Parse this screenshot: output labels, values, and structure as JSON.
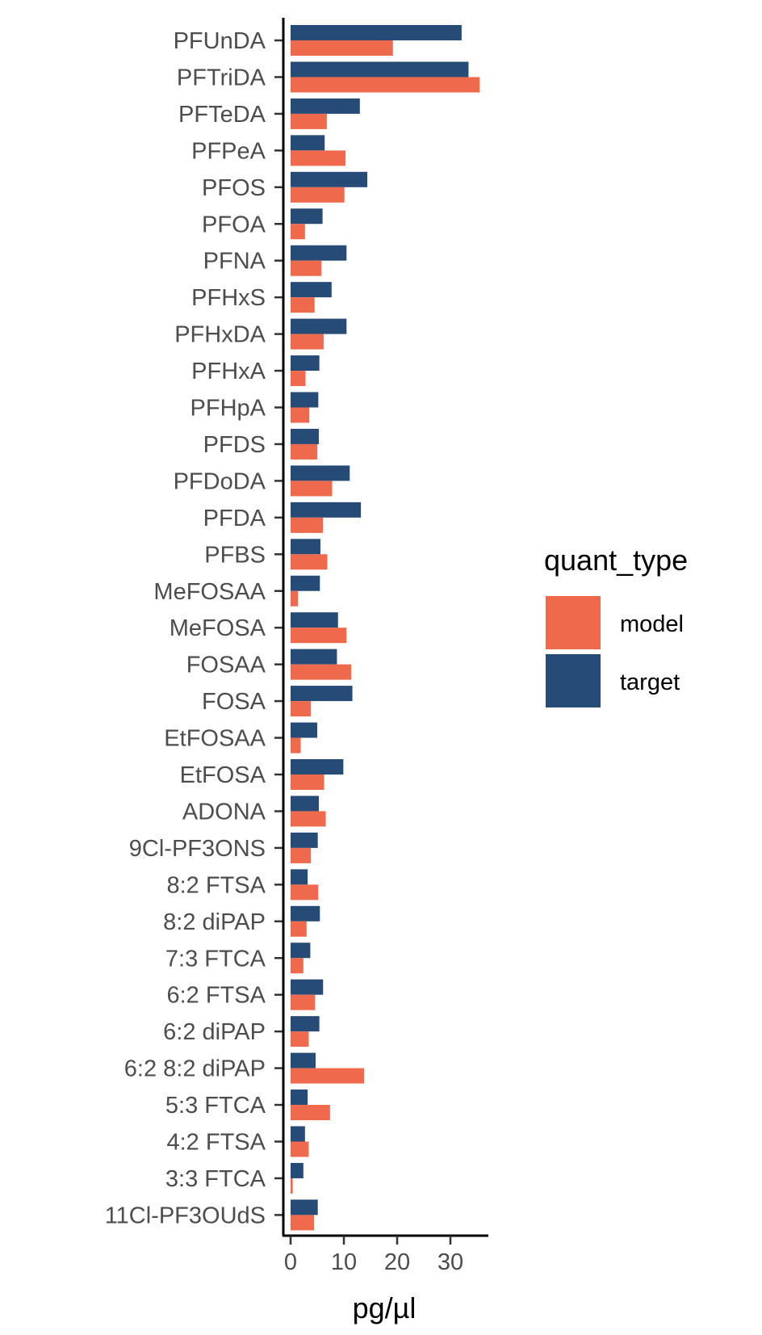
{
  "chart_data": {
    "type": "bar",
    "orientation": "horizontal",
    "xlabel": "pg/µl",
    "ylabel": "",
    "xlim": [
      0,
      37
    ],
    "xticks": [
      "0",
      "10",
      "20",
      "30"
    ],
    "xtick_values": [
      0,
      10,
      20,
      30
    ],
    "grid": false,
    "legend": {
      "title": "quant_type",
      "placement": "right"
    },
    "categories": [
      "PFUnDA",
      "PFTriDA",
      "PFTeDA",
      "PFPeA",
      "PFOS",
      "PFOA",
      "PFNA",
      "PFHxS",
      "PFHxDA",
      "PFHxA",
      "PFHpA",
      "PFDS",
      "PFDoDA",
      "PFDA",
      "PFBS",
      "MeFOSAA",
      "MeFOSA",
      "FOSAA",
      "FOSA",
      "EtFOSAA",
      "EtFOSA",
      "ADONA",
      "9Cl-PF3ONS",
      "8:2 FTSA",
      "8:2 diPAP",
      "7:3 FTCA",
      "6:2 FTSA",
      "6:2 diPAP",
      "6:2 8:2 diPAP",
      "5:3 FTCA",
      "4:2 FTSA",
      "3:3 FTCA",
      "11Cl-PF3OUdS"
    ],
    "series": [
      {
        "name": "model",
        "color": "#EF6A4C",
        "values": [
          19.2,
          35.5,
          6.8,
          10.3,
          10.1,
          2.7,
          5.8,
          4.5,
          6.2,
          2.8,
          3.5,
          5.0,
          7.8,
          6.1,
          6.9,
          1.4,
          10.5,
          11.4,
          3.8,
          1.9,
          6.3,
          6.6,
          3.8,
          5.2,
          3.0,
          2.4,
          4.6,
          3.4,
          13.8,
          7.4,
          3.4,
          0.4,
          4.4
        ]
      },
      {
        "name": "target",
        "color": "#264B77",
        "values": [
          32.1,
          33.4,
          13.0,
          6.4,
          14.4,
          6.0,
          10.5,
          7.7,
          10.5,
          5.4,
          5.2,
          5.3,
          11.1,
          13.2,
          5.6,
          5.5,
          8.9,
          8.7,
          11.6,
          5.0,
          9.9,
          5.3,
          5.1,
          3.2,
          5.5,
          3.7,
          6.1,
          5.4,
          4.7,
          3.2,
          2.7,
          2.4,
          5.1
        ]
      }
    ]
  }
}
